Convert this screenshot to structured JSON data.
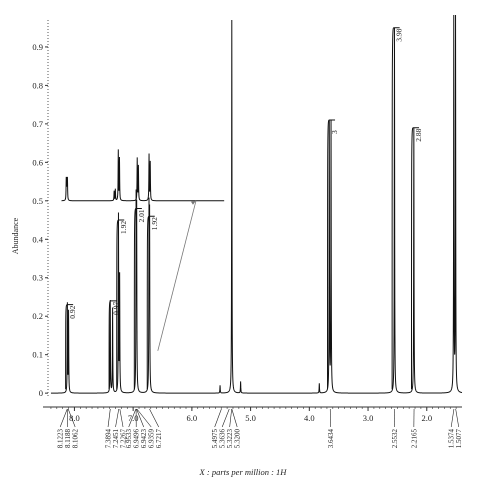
{
  "chart_data": {
    "type": "line",
    "xlabel": "X : parts per million : 1H",
    "ylabel": "Abundance",
    "xlim": [
      8.45,
      1.4
    ],
    "ylim": [
      -0.01,
      0.97
    ],
    "x_ticks": [
      "8.0",
      "7.0",
      "6.0",
      "5.0",
      "4.0",
      "3.0",
      "2.0"
    ],
    "y_ticks": [
      "0",
      "0.1",
      "0.2",
      "0.3",
      "0.4",
      "0.5",
      "0.6",
      "0.7",
      "0.8",
      "0.9"
    ],
    "series": [
      {
        "peaks": [
          {
            "ppm": 8.12,
            "height": 0.23
          },
          {
            "ppm": 8.1,
            "height": 0.21
          },
          {
            "ppm": 7.39,
            "height": 0.24
          },
          {
            "ppm": 7.35,
            "height": 0.22
          },
          {
            "ppm": 7.25,
            "height": 0.46
          },
          {
            "ppm": 7.23,
            "height": 0.3
          },
          {
            "ppm": 6.95,
            "height": 0.48
          },
          {
            "ppm": 6.94,
            "height": 0.45
          },
          {
            "ppm": 6.73,
            "height": 0.46
          },
          {
            "ppm": 6.72,
            "height": 0.44
          },
          {
            "ppm": 5.52,
            "height": 0.02
          },
          {
            "ppm": 5.32,
            "height": 0.97
          },
          {
            "ppm": 5.17,
            "height": 0.03
          },
          {
            "ppm": 3.83,
            "height": 0.025
          },
          {
            "ppm": 3.66,
            "height": 0.7
          },
          {
            "ppm": 3.63,
            "height": 0.7
          },
          {
            "ppm": 2.55,
            "height": 0.95
          },
          {
            "ppm": 2.22,
            "height": 0.69
          },
          {
            "ppm": 1.54,
            "height": 0.97
          },
          {
            "ppm": 1.51,
            "height": 0.97
          }
        ]
      }
    ],
    "inset": {
      "baseline": 0.5,
      "peaks": [
        {
          "ppm": 8.12,
          "height": 0.055
        },
        {
          "ppm": 8.11,
          "height": 0.05
        },
        {
          "ppm": 8.1,
          "height": 0.055
        },
        {
          "ppm": 7.31,
          "height": 0.025
        },
        {
          "ppm": 7.29,
          "height": 0.03
        },
        {
          "ppm": 7.24,
          "height": 0.13
        },
        {
          "ppm": 7.22,
          "height": 0.11
        },
        {
          "ppm": 6.92,
          "height": 0.11
        },
        {
          "ppm": 6.9,
          "height": 0.09
        },
        {
          "ppm": 6.72,
          "height": 0.12
        },
        {
          "ppm": 6.7,
          "height": 0.1
        }
      ]
    },
    "integrations": [
      "0.92",
      "0.97",
      "1.92",
      "2.01",
      "1.92",
      "3",
      "3.98",
      "2.88"
    ],
    "peak_labels": [
      "8.1223",
      "8.1188",
      "8.1062",
      "7.3894",
      "7.2451",
      "7.2267",
      "6.9533",
      "6.9496",
      "6.9423",
      "6.9359",
      "6.7217",
      "5.4975",
      "5.3636",
      "5.3223",
      "5.3200",
      "3.6434",
      "2.5532",
      "2.2165",
      "1.5374",
      "1.5077"
    ]
  }
}
